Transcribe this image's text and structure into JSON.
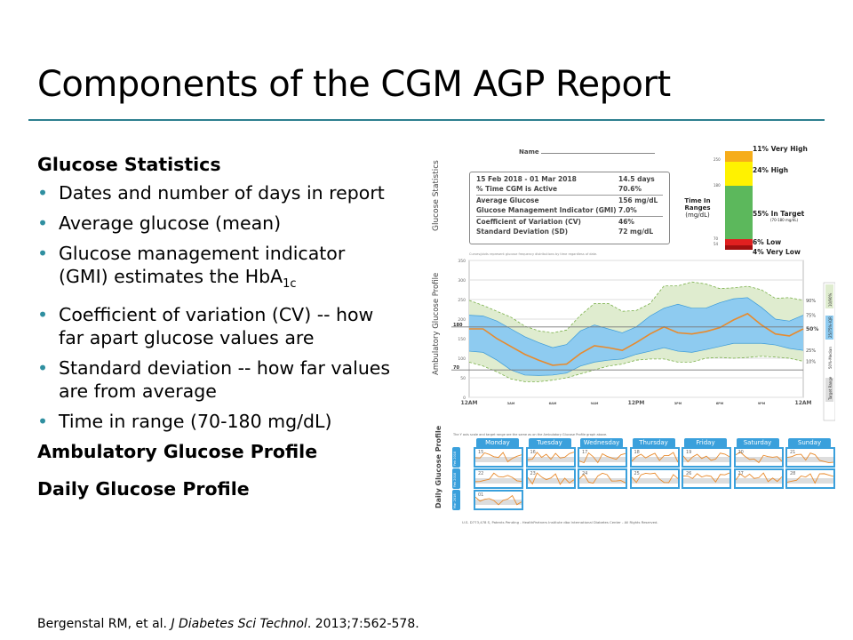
{
  "slide": {
    "title": "Components of the CGM AGP Report",
    "sections": [
      {
        "heading": "Glucose Statistics",
        "bullets": [
          "Dates and number of days in report",
          "Average glucose (mean)",
          "Glucose management indicator (GMI) estimates the HbA",
          "Coefficient of variation (CV) -- how far apart glucose values are",
          "Standard deviation -- how far values are from average",
          "Time in range (70-180 mg/dL)"
        ],
        "subscript": "1c"
      },
      {
        "heading": "Ambulatory Glucose Profile"
      },
      {
        "heading": "Daily Glucose Profile"
      }
    ],
    "citation": {
      "authors": "Bergenstal RM, et al. ",
      "journal": "J Diabetes Sci Technol",
      "rest": ". 2013;7:562-578."
    }
  },
  "report": {
    "name_label": "Name",
    "stats_label": "Glucose Statistics",
    "stats": [
      [
        "15 Feb 2018 - 01 Mar 2018",
        "14.5 days"
      ],
      [
        "% Time CGM is Active",
        "70.6%"
      ],
      [
        "Average Glucose",
        "156 mg/dL"
      ],
      [
        "Glucose Management Indicator (GMI)",
        "7.0%"
      ],
      [
        "Coefficient of Variation (CV)",
        "46%"
      ],
      [
        "Standard Deviation (SD)",
        "72 mg/dL"
      ]
    ],
    "tir": {
      "title": "Time In Ranges",
      "unit": "(mg/dL)",
      "ticks": [
        "250",
        "180",
        "70",
        "54"
      ],
      "ranges": [
        {
          "label": "11% Very High",
          "pct": 11,
          "color": "#f6ad1a"
        },
        {
          "label": "24% High",
          "pct": 24,
          "color": "#fff200"
        },
        {
          "label": "55% In Target",
          "sub": "(70-180 mg/dL)",
          "pct": 55,
          "color": "#5cb85c"
        },
        {
          "label": "6% Low",
          "pct": 6,
          "color": "#e02020"
        },
        {
          "label": "4% Very Low",
          "pct": 4,
          "color": "#a01010"
        }
      ]
    },
    "agp_note": "Curves/plots represent glucose frequency distributions by time regardless of date.",
    "agp_label": "Ambulatory Glucose Profile",
    "agp_unit": "[mg/dL]",
    "target_label": "Target Range",
    "legend": [
      "10/90%",
      "25/75%-IQR",
      "50%-Median",
      "Target Range"
    ],
    "pct_labels": [
      "90%",
      "75%",
      "50%",
      "25%",
      "10%"
    ],
    "daily_note": "The Y axis scale and target range are the same as on the Ambulatory Glucose Profile graph above.",
    "daily_label": "Daily Glucose Profile",
    "days": [
      "Monday",
      "Tuesday",
      "Wednesday",
      "Thursday",
      "Friday",
      "Saturday",
      "Sunday"
    ],
    "months": [
      "Feb 2018",
      "Feb 2018",
      "Mar 2018"
    ],
    "dates": [
      "15",
      "16",
      "17",
      "18",
      "19",
      "20",
      "21",
      "22",
      "23",
      "24",
      "25",
      "26",
      "27",
      "28",
      "01"
    ],
    "footer": "U.S. D773,478 S, Patents Pending - HealthPartners Institute dba International Diabetes Center - All Rights Reserved."
  },
  "chart_data": {
    "type": "area",
    "title": "",
    "ylabel": "[mg/dL]",
    "ylim": [
      0,
      350
    ],
    "yticks": [
      0,
      50,
      100,
      150,
      200,
      250,
      300,
      350
    ],
    "target_range": [
      70,
      180
    ],
    "x_hours": [
      0,
      1,
      2,
      3,
      4,
      5,
      6,
      7,
      8,
      9,
      10,
      11,
      12,
      13,
      14,
      15,
      16,
      17,
      18,
      19,
      20,
      21,
      22,
      23,
      24
    ],
    "xticks": [
      "12AM",
      "3AM",
      "6AM",
      "9AM",
      "12PM",
      "3PM",
      "6PM",
      "9PM",
      "12AM"
    ],
    "series": [
      {
        "name": "90%",
        "values": [
          248,
          235,
          220,
          205,
          182,
          170,
          165,
          172,
          210,
          240,
          240,
          220,
          222,
          240,
          285,
          285,
          295,
          290,
          278,
          280,
          284,
          275,
          253,
          255,
          248
        ]
      },
      {
        "name": "75%",
        "values": [
          210,
          208,
          195,
          175,
          155,
          140,
          127,
          135,
          170,
          185,
          175,
          165,
          180,
          208,
          228,
          238,
          228,
          228,
          242,
          252,
          255,
          230,
          200,
          195,
          210
        ]
      },
      {
        "name": "50%",
        "values": [
          175,
          175,
          150,
          130,
          110,
          95,
          82,
          85,
          112,
          132,
          127,
          120,
          140,
          162,
          180,
          165,
          162,
          168,
          178,
          198,
          214,
          185,
          162,
          157,
          175
        ]
      },
      {
        "name": "25%",
        "values": [
          118,
          115,
          95,
          70,
          57,
          56,
          57,
          62,
          80,
          90,
          95,
          98,
          110,
          118,
          127,
          118,
          115,
          122,
          130,
          138,
          138,
          138,
          134,
          125,
          120
        ]
      },
      {
        "name": "10%",
        "values": [
          90,
          80,
          65,
          47,
          40,
          40,
          44,
          50,
          60,
          70,
          80,
          85,
          95,
          98,
          98,
          90,
          90,
          100,
          102,
          100,
          102,
          105,
          103,
          100,
          92
        ]
      }
    ]
  },
  "colors": {
    "accent": "#2d7f8f",
    "bullet": "#2f8fa0",
    "iqr": "#8ecbf0",
    "outer": "#dfeccf",
    "median": "#e88a2c",
    "day": "#3aa0dc"
  }
}
